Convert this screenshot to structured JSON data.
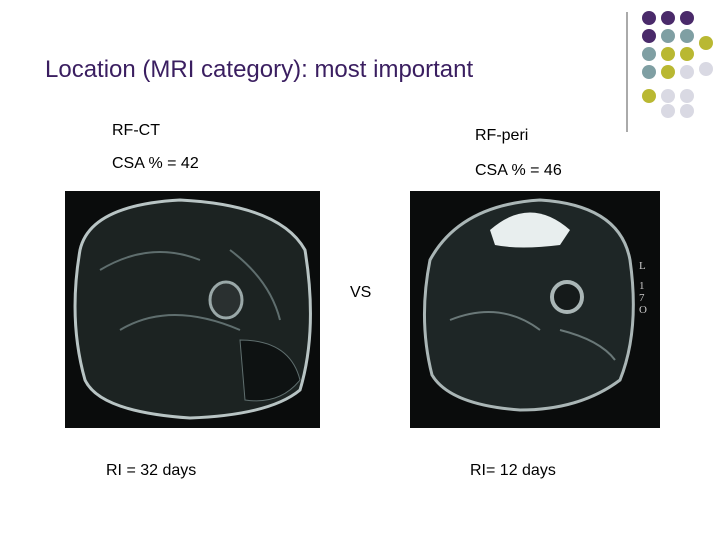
{
  "header": {
    "title": "Location (MRI category): most important"
  },
  "left": {
    "label": "RF-CT",
    "csa": "CSA % = 42",
    "ri": "RI = 32 days"
  },
  "right": {
    "label": "RF-peri",
    "csa": "CSA % = 46",
    "ri": "RI= 12 days",
    "side_marks": [
      "L",
      "1",
      "7",
      "O"
    ]
  },
  "versus": "VS"
}
